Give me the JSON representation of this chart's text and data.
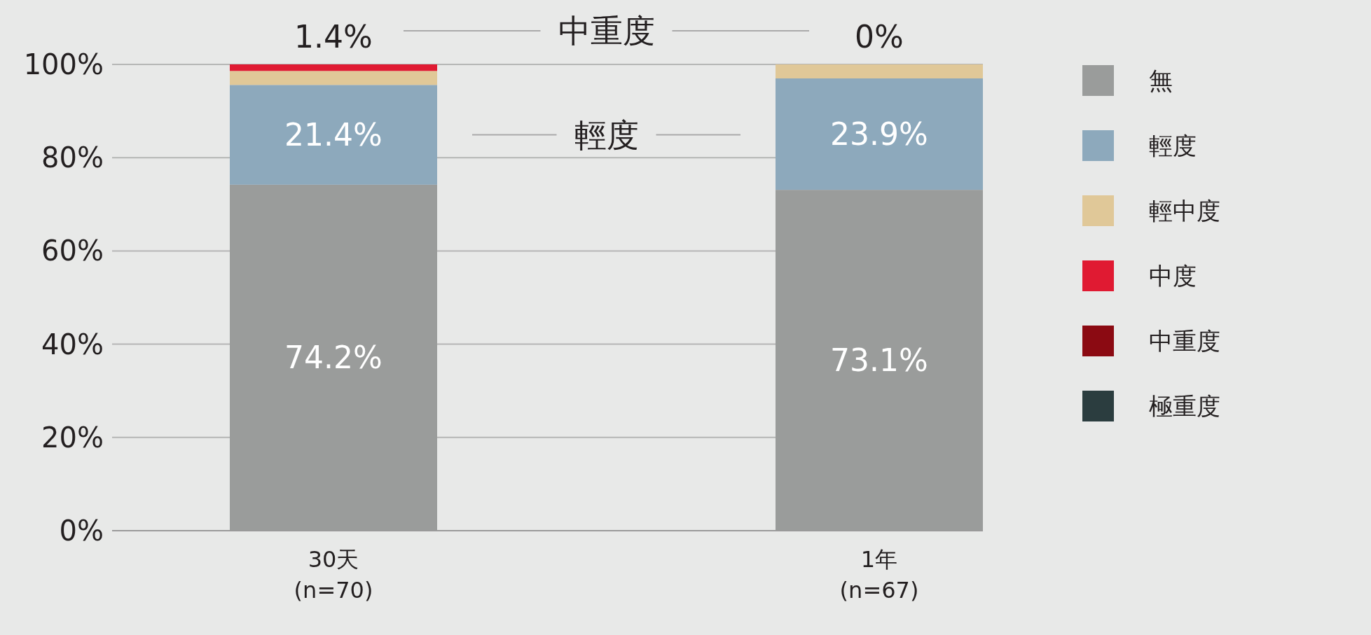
{
  "chart_data": {
    "type": "bar",
    "stacked": true,
    "categories": [
      "30天\n(n=70)",
      "1年\n(n=67)"
    ],
    "ylim": [
      0,
      100
    ],
    "yticks": [
      {
        "value": 0,
        "label": "0%"
      },
      {
        "value": 20,
        "label": "20%"
      },
      {
        "value": 40,
        "label": "40%"
      },
      {
        "value": 60,
        "label": "60%"
      },
      {
        "value": 80,
        "label": "80%"
      },
      {
        "value": 100,
        "label": "100%"
      }
    ],
    "grid": "y",
    "legend": "right",
    "series": [
      {
        "name": "無",
        "color": "#9a9c9b",
        "values": [
          74.2,
          73.1
        ],
        "value_labels": [
          "74.2%",
          "73.1%"
        ]
      },
      {
        "name": "輕度",
        "color": "#8da9bc",
        "values": [
          21.4,
          23.9
        ],
        "value_labels": [
          "21.4%",
          "23.9%"
        ]
      },
      {
        "name": "輕中度",
        "color": "#e0c898",
        "values": [
          3.0,
          3.0
        ]
      },
      {
        "name": "中度",
        "color": "#e01a32",
        "values": [
          1.4,
          0
        ],
        "value_labels": [
          "1.4%",
          "0%"
        ]
      },
      {
        "name": "中重度",
        "color": "#8b0a12",
        "values": [
          0,
          0
        ]
      },
      {
        "name": "極重度",
        "color": "#2b3d3f",
        "values": [
          0,
          0
        ]
      }
    ],
    "annotations": [
      "中重度",
      "輕度"
    ]
  }
}
